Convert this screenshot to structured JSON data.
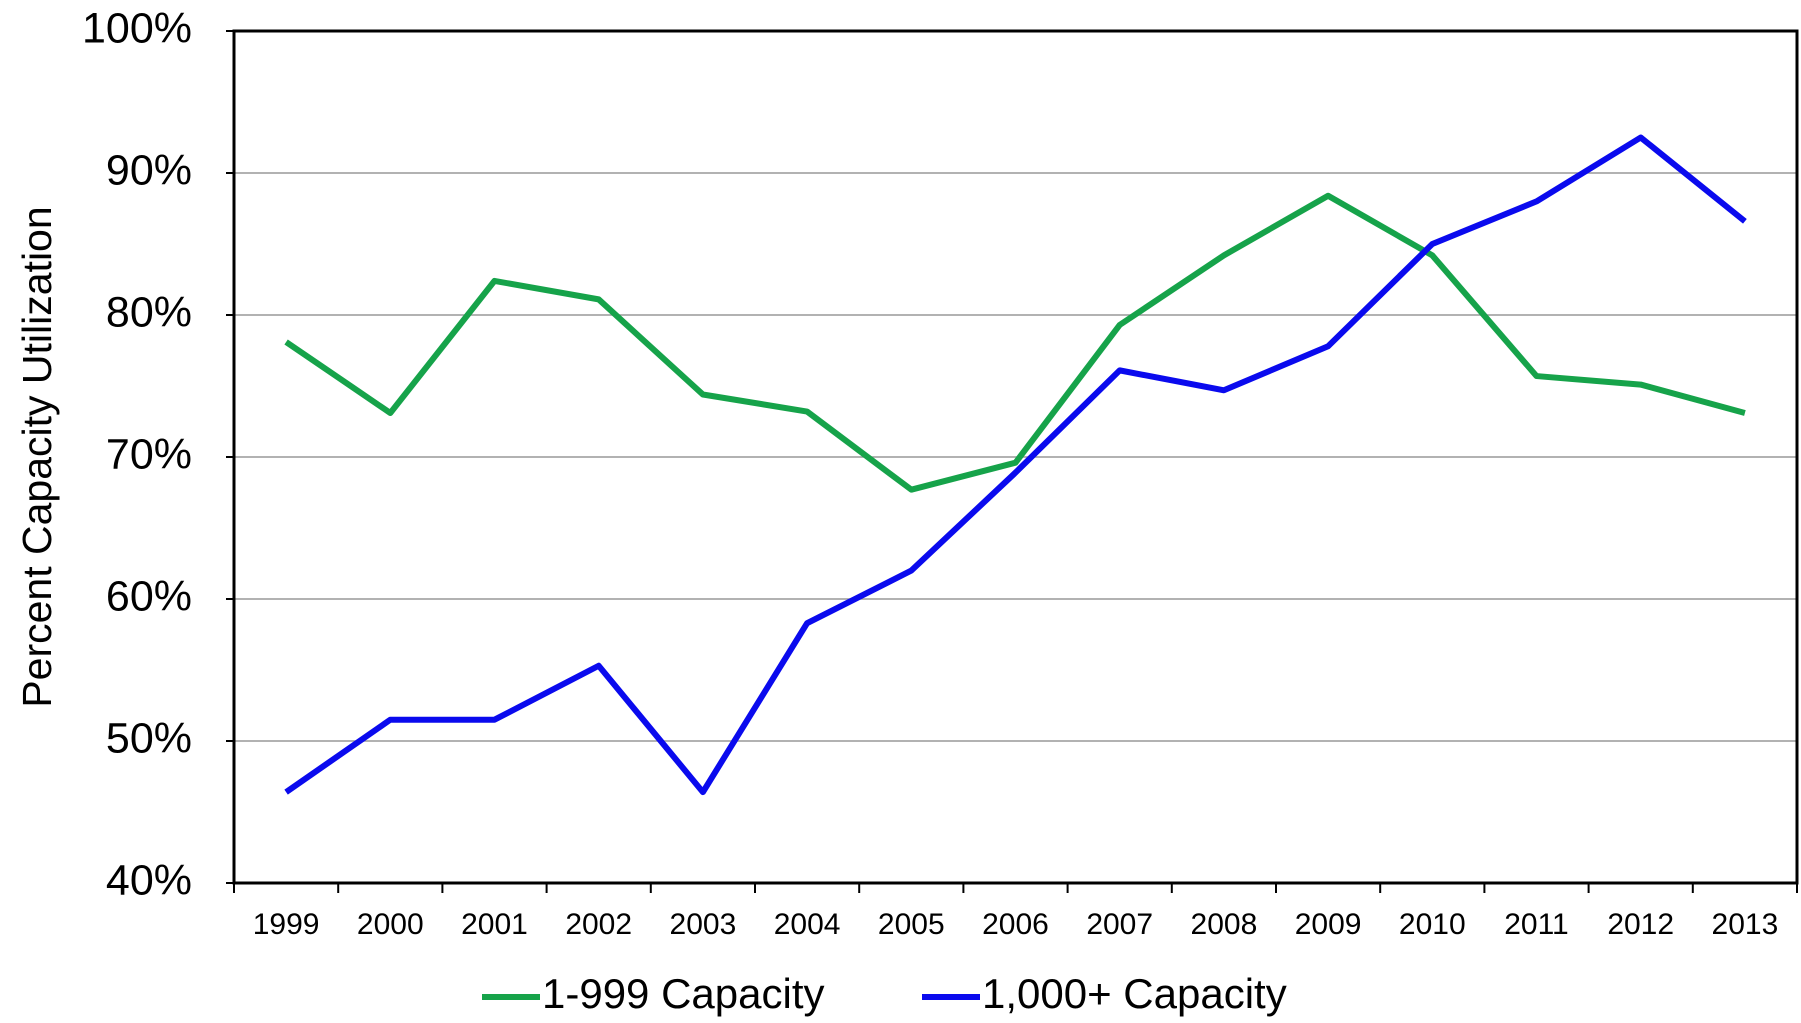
{
  "chart_data": {
    "type": "line",
    "y_label": "Percent Capacity Utilization",
    "categories": [
      "1999",
      "2000",
      "2001",
      "2002",
      "2003",
      "2004",
      "2005",
      "2006",
      "2007",
      "2008",
      "2009",
      "2010",
      "2011",
      "2012",
      "2013"
    ],
    "series": [
      {
        "name": "1-999 Capacity",
        "color": "#16a34a",
        "values": [
          78.1,
          73.1,
          82.4,
          81.1,
          74.4,
          73.2,
          67.7,
          69.6,
          79.3,
          84.2,
          88.4,
          84.2,
          75.7,
          75.1,
          73.1
        ]
      },
      {
        "name": "1,000+ Capacity",
        "color": "#0a0aee",
        "values": [
          46.4,
          51.5,
          51.5,
          55.3,
          46.4,
          58.3,
          62.0,
          68.9,
          76.1,
          74.7,
          77.8,
          85.0,
          88.0,
          92.5,
          86.6
        ]
      }
    ],
    "ylim": [
      40,
      100
    ],
    "yticks": [
      {
        "value": 40,
        "label": "40%"
      },
      {
        "value": 50,
        "label": "50%"
      },
      {
        "value": 60,
        "label": "60%"
      },
      {
        "value": 70,
        "label": "70%"
      },
      {
        "value": 80,
        "label": "80%"
      },
      {
        "value": 90,
        "label": "90%"
      },
      {
        "value": 100,
        "label": "100%"
      }
    ],
    "grid": true,
    "legend": "bottom"
  }
}
